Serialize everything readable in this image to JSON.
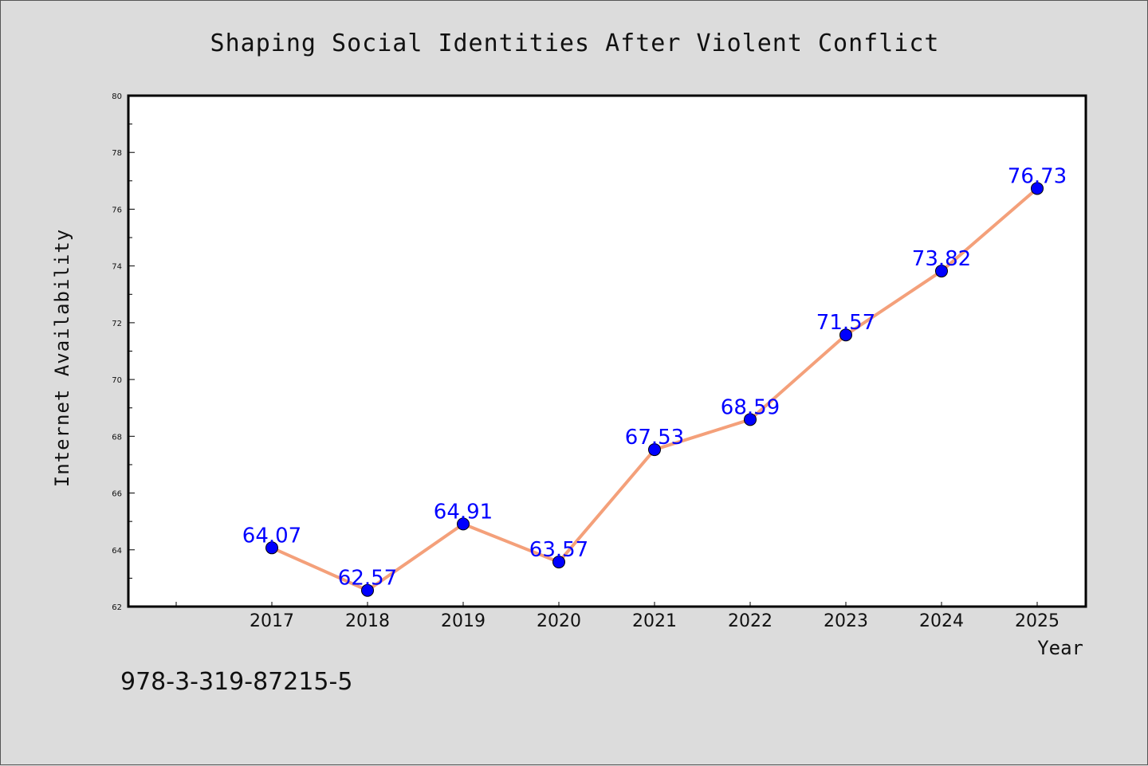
{
  "chart_data": {
    "type": "line",
    "title": "Shaping Social Identities After Violent Conflict",
    "xlabel": "Year",
    "ylabel": "Internet Availability",
    "x": [
      "2017",
      "2018",
      "2019",
      "2020",
      "2021",
      "2022",
      "2023",
      "2024",
      "2025"
    ],
    "series": [
      {
        "values": [
          64.07,
          62.57,
          64.91,
          63.57,
          67.53,
          68.59,
          71.57,
          73.82,
          76.73
        ],
        "labels": [
          "64.07",
          "62.57",
          "64.91",
          "63.57",
          "67.53",
          "68.59",
          "71.57",
          "73.82",
          "76.73"
        ],
        "line_color": "#f4a07a",
        "marker_color": "#0000ff"
      }
    ],
    "ylim": [
      62,
      80
    ],
    "yticks": [
      "62",
      "64",
      "66",
      "68",
      "70",
      "72",
      "74",
      "76",
      "78",
      "80"
    ],
    "grid": false,
    "data_labels": true
  },
  "footer": {
    "isbn": "978-3-319-87215-5"
  }
}
